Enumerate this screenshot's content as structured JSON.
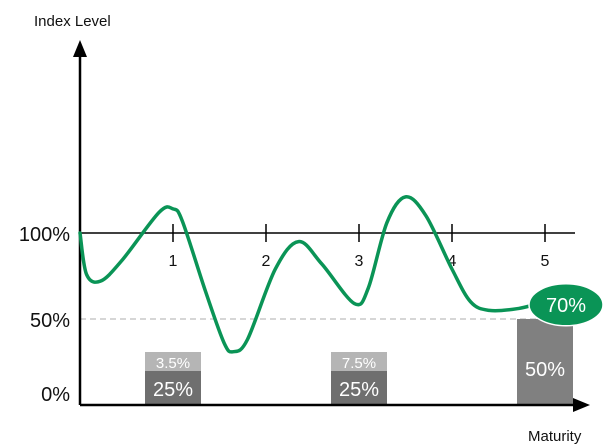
{
  "chart_data": {
    "type": "line",
    "ylabel": "Index Level",
    "xlabel": "Maturity",
    "x_ticks": [
      "1",
      "2",
      "3",
      "4",
      "5"
    ],
    "y_ticks": [
      {
        "label": "100%",
        "value": 100
      },
      {
        "label": "50%",
        "value": 50
      },
      {
        "label": "0%",
        "value": 0
      }
    ],
    "ylim": [
      0,
      200
    ],
    "xlim": [
      0,
      5.3
    ],
    "reference_line": {
      "value": 50,
      "style": "dashed"
    },
    "series": [
      {
        "color": "#0a9456",
        "points": [
          {
            "x": 0.0,
            "y": 100
          },
          {
            "x": 0.07,
            "y": 76
          },
          {
            "x": 0.22,
            "y": 72
          },
          {
            "x": 0.45,
            "y": 84
          },
          {
            "x": 0.85,
            "y": 112
          },
          {
            "x": 1.0,
            "y": 114
          },
          {
            "x": 1.1,
            "y": 107
          },
          {
            "x": 1.35,
            "y": 66
          },
          {
            "x": 1.55,
            "y": 36
          },
          {
            "x": 1.65,
            "y": 31
          },
          {
            "x": 1.8,
            "y": 38
          },
          {
            "x": 2.1,
            "y": 79
          },
          {
            "x": 2.35,
            "y": 95
          },
          {
            "x": 2.6,
            "y": 82
          },
          {
            "x": 2.95,
            "y": 59
          },
          {
            "x": 3.1,
            "y": 68
          },
          {
            "x": 3.3,
            "y": 106
          },
          {
            "x": 3.5,
            "y": 121
          },
          {
            "x": 3.72,
            "y": 110
          },
          {
            "x": 4.0,
            "y": 79
          },
          {
            "x": 4.2,
            "y": 60
          },
          {
            "x": 4.4,
            "y": 55
          },
          {
            "x": 4.7,
            "y": 56
          },
          {
            "x": 5.0,
            "y": 60
          }
        ]
      }
    ],
    "boxes": [
      {
        "x": 1,
        "value_label": "25%",
        "top_label": "3.5%",
        "value_color": "#6f6f6f",
        "top_color": "#b5b5b5"
      },
      {
        "x": 3,
        "value_label": "25%",
        "top_label": "7.5%",
        "value_color": "#6f6f6f",
        "top_color": "#b5b5b5"
      },
      {
        "x": 5,
        "value_label": "50%",
        "top_label": "",
        "value_color": "#808080",
        "top_color": ""
      }
    ],
    "callout": {
      "label": "70%",
      "x": 5,
      "y": 60,
      "color": "#0a9456"
    }
  }
}
